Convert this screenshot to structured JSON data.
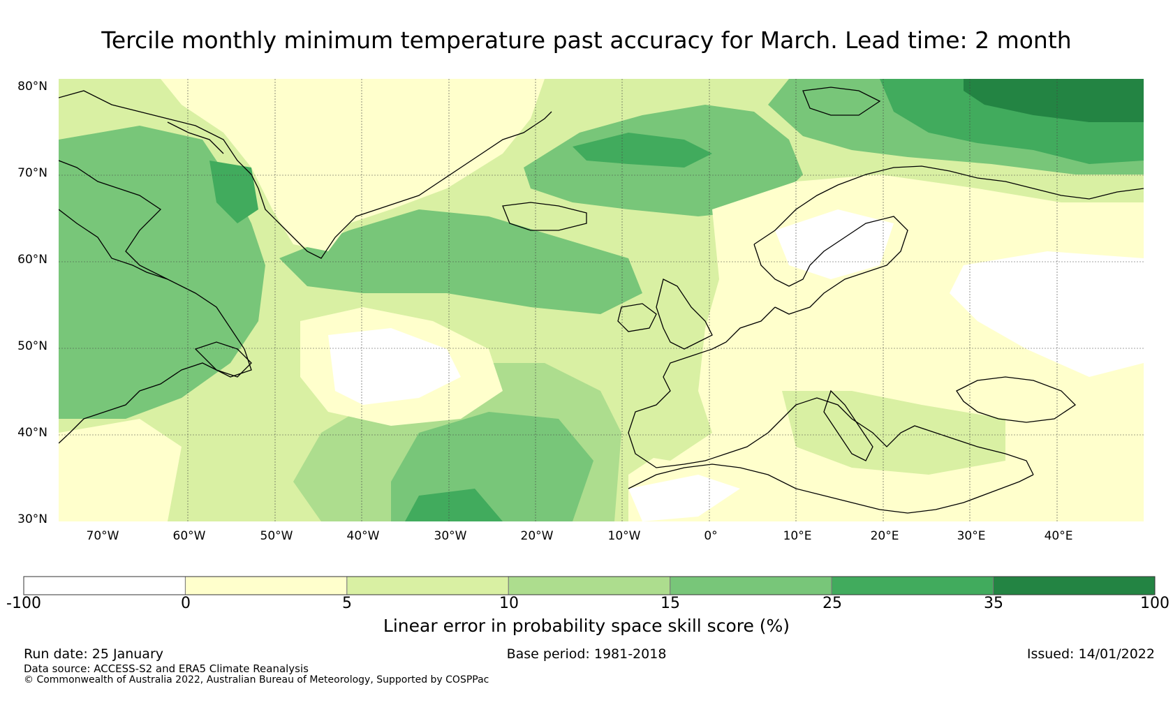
{
  "title": "Tercile monthly minimum temperature past accuracy for March. Lead time: 2 month",
  "map": {
    "lat_labels": [
      "80°N",
      "70°N",
      "60°N",
      "50°N",
      "40°N",
      "30°N"
    ],
    "lon_labels": [
      "70°W",
      "60°W",
      "50°W",
      "40°W",
      "30°W",
      "20°W",
      "10°W",
      "0°",
      "10°E",
      "20°E",
      "30°E",
      "40°E"
    ]
  },
  "colorbar": {
    "ticks": [
      "-100",
      "0",
      "5",
      "10",
      "15",
      "25",
      "35",
      "100"
    ],
    "colors": [
      "#ffffff",
      "#ffffcc",
      "#d9f0a3",
      "#addd8e",
      "#78c679",
      "#41ab5d",
      "#238443"
    ],
    "label": "Linear error in probability space skill score (%)"
  },
  "footer": {
    "run_date": "Run date: 25 January",
    "base_period": "Base period: 1981-2018",
    "issued": "Issued: 14/01/2022",
    "data_source": "Data source: ACCESS-S2 and ERA5 Climate Reanalysis",
    "copyright": "© Commonwealth of Australia 2022, Australian Bureau of Meteorology, Supported by COSPPac"
  }
}
